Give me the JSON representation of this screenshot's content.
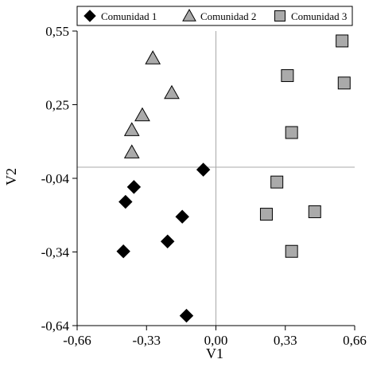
{
  "chart_data": {
    "type": "scatter",
    "xlabel": "V1",
    "ylabel": "V2",
    "xlim": [
      -0.66,
      0.66
    ],
    "ylim": [
      -0.64,
      0.55
    ],
    "xticks": [
      "-0,66",
      "-0,33",
      "0,00",
      "0,33",
      "0,66"
    ],
    "yticks": [
      "0,55",
      "0,25",
      "-0,04",
      "-0,34",
      "-0,64"
    ],
    "reference_lines": {
      "x": 0.0,
      "y": 0.0
    },
    "legend_position": "top",
    "series": [
      {
        "name": "Comunidad 1",
        "marker": "diamond",
        "color": "#000000",
        "points": [
          [
            -0.06,
            -0.01
          ],
          [
            -0.39,
            -0.08
          ],
          [
            -0.43,
            -0.14
          ],
          [
            -0.16,
            -0.2
          ],
          [
            -0.23,
            -0.3
          ],
          [
            -0.44,
            -0.34
          ],
          [
            -0.14,
            -0.6
          ]
        ]
      },
      {
        "name": "Comunidad 2",
        "marker": "triangle",
        "color": "#aaaaaa",
        "points": [
          [
            -0.3,
            0.44
          ],
          [
            -0.21,
            0.3
          ],
          [
            -0.35,
            0.21
          ],
          [
            -0.4,
            0.15
          ],
          [
            -0.4,
            0.06
          ]
        ]
      },
      {
        "name": "Comunidad 3",
        "marker": "square",
        "color": "#aaaaaa",
        "points": [
          [
            0.6,
            0.51
          ],
          [
            0.34,
            0.37
          ],
          [
            0.61,
            0.34
          ],
          [
            0.36,
            0.14
          ],
          [
            0.29,
            -0.06
          ],
          [
            0.47,
            -0.18
          ],
          [
            0.24,
            -0.19
          ],
          [
            0.36,
            -0.34
          ]
        ]
      }
    ]
  }
}
